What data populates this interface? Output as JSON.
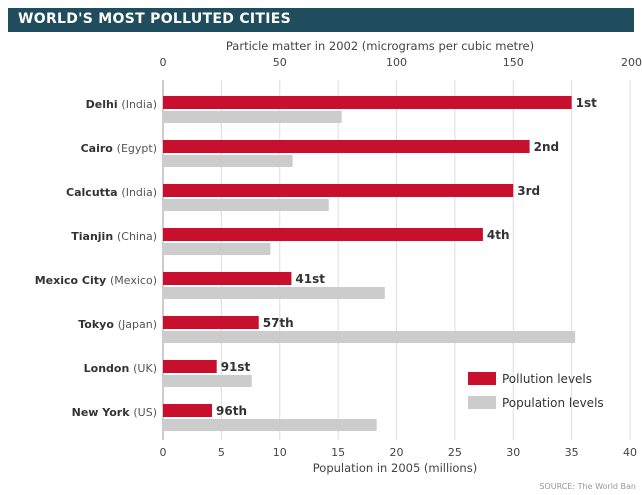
{
  "chart_data": {
    "type": "bar",
    "title": "WORLD'S MOST POLLUTED CITIES",
    "source": "SOURCE: The World Ban",
    "colors": {
      "pollution": "#c8102e",
      "population": "#cccccc",
      "banner": "#1f4d5e"
    },
    "legend_position": "bottom-right",
    "grid": true,
    "categories": [
      {
        "city": "Delhi",
        "country": "(India)"
      },
      {
        "city": "Cairo",
        "country": "(Egypt)"
      },
      {
        "city": "Calcutta",
        "country": "(India)"
      },
      {
        "city": "Tianjin",
        "country": "(China)"
      },
      {
        "city": "Mexico City",
        "country": "(Mexico)"
      },
      {
        "city": "Tokyo",
        "country": "(Japan)"
      },
      {
        "city": "London",
        "country": "(UK)"
      },
      {
        "city": "New York",
        "country": "(US)"
      }
    ],
    "top_axis": {
      "label": "Particle matter in 2002 (micrograms per cubic metre)",
      "range": [
        0,
        200
      ],
      "ticks": [
        0,
        50,
        100,
        150,
        200
      ]
    },
    "bottom_axis": {
      "label": "Population in 2005 (millions)",
      "range": [
        0,
        40
      ],
      "ticks": [
        0,
        5,
        10,
        15,
        20,
        25,
        30,
        35,
        40
      ]
    },
    "series": [
      {
        "name": "Pollution levels",
        "axis": "top",
        "values": [
          175,
          157,
          150,
          137,
          55,
          41,
          23,
          21
        ]
      },
      {
        "name": "Population levels",
        "axis": "bottom",
        "values": [
          15.3,
          11.1,
          14.2,
          9.2,
          19.0,
          35.3,
          7.6,
          18.3
        ]
      }
    ],
    "rank_labels": [
      "1st",
      "2nd",
      "3rd",
      "4th",
      "41st",
      "57th",
      "91st",
      "96th"
    ]
  }
}
